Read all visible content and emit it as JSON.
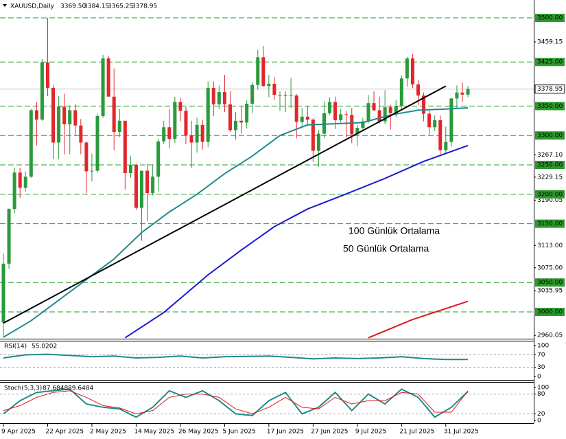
{
  "chart_data": [
    {
      "type": "candlestick",
      "title": "XAUUSD,Daily",
      "ohlc_labels": [
        "3369.50",
        "3384.15",
        "3365.25",
        "3378.95"
      ],
      "categories": [
        "9 Apr 2025",
        null,
        null,
        null,
        null,
        null,
        null,
        null,
        "22 Apr 2025",
        null,
        null,
        null,
        null,
        null,
        null,
        null,
        "2 May 2025",
        null,
        null,
        null,
        null,
        null,
        null,
        null,
        "14 May 2025",
        null,
        null,
        null,
        null,
        null,
        null,
        null,
        "26 May 2025",
        null,
        null,
        null,
        null,
        null,
        null,
        null,
        "5 Jun 2025",
        null,
        null,
        null,
        null,
        null,
        null,
        null,
        "17 Jun 2025",
        null,
        null,
        null,
        null,
        null,
        null,
        null,
        "27 Jun 2025",
        null,
        null,
        null,
        null,
        null,
        null,
        null,
        "9 Jul 2025",
        null,
        null,
        null,
        null,
        null,
        null,
        null,
        "21 Jul 2025",
        null,
        null,
        null,
        null,
        null,
        null,
        null,
        "31 Jul 2025",
        null,
        null,
        null,
        null
      ],
      "open": [
        2982,
        3082,
        3175,
        3237,
        3211,
        3230,
        3343,
        3327,
        3424,
        3381,
        3288,
        3349,
        3319,
        3343,
        3317,
        3288,
        3239,
        3240,
        3333,
        3431,
        3366,
        3306,
        3325,
        3236,
        3250,
        3177,
        3240,
        3202,
        3230,
        3290,
        3314,
        3294,
        3357,
        3342,
        3300,
        3288,
        3318,
        3289,
        3381,
        3353,
        3374,
        3353,
        3309,
        3325,
        3322,
        3354,
        3386,
        3433,
        3384,
        3388,
        3369,
        3369,
        3368,
        3368,
        3323,
        3332,
        3327,
        3274,
        3303,
        3338,
        3357,
        3326,
        3336,
        3335,
        3302,
        3313,
        3324,
        3355,
        3343,
        3324,
        3348,
        3338,
        3350,
        3397,
        3431,
        3387,
        3368,
        3337,
        3314,
        3326,
        3275,
        3289,
        3363,
        3373,
        3369.5
      ],
      "high": [
        3099,
        3176,
        3245,
        3245,
        3239,
        3345,
        3357,
        3430,
        3500,
        3386,
        3367,
        3371,
        3351,
        3353,
        3328,
        3290,
        3269,
        3337,
        3437,
        3435,
        3414,
        3345,
        3325,
        3265,
        3252,
        3240,
        3252,
        3250,
        3295,
        3325,
        3345,
        3366,
        3364,
        3348,
        3325,
        3330,
        3326,
        3392,
        3392,
        3385,
        3403,
        3376,
        3340,
        3350,
        3360,
        3391,
        3446,
        3452,
        3403,
        3399,
        3375,
        3375,
        3398,
        3370,
        3347,
        3350,
        3329,
        3309,
        3358,
        3365,
        3366,
        3345,
        3342,
        3347,
        3317,
        3330,
        3369,
        3375,
        3366,
        3377,
        3352,
        3361,
        3402,
        3434,
        3439,
        3394,
        3373,
        3345,
        3334,
        3334,
        3315,
        3364,
        3385,
        3390,
        3384.15
      ],
      "low": [
        2957,
        3073,
        3168,
        3194,
        3205,
        3228,
        3283,
        3325,
        3367,
        3260,
        3260,
        3268,
        3268,
        3300,
        3268,
        3202,
        3222,
        3237,
        3330,
        3367,
        3275,
        3297,
        3208,
        3228,
        3173,
        3121,
        3154,
        3198,
        3205,
        3285,
        3278,
        3287,
        3324,
        3285,
        3245,
        3271,
        3276,
        3280,
        3333,
        3345,
        3340,
        3306,
        3293,
        3303,
        3312,
        3338,
        3378,
        3383,
        3365,
        3361,
        3342,
        3340,
        3347,
        3295,
        3312,
        3316,
        3255,
        3247,
        3296,
        3335,
        3311,
        3322,
        3296,
        3287,
        3282,
        3308,
        3321,
        3341,
        3320,
        3319,
        3310,
        3331,
        3345,
        3383,
        3381,
        3351,
        3324,
        3302,
        3308,
        3268,
        3268,
        3281,
        3347,
        3357,
        3365.25
      ],
      "close": [
        3082,
        3175,
        3237,
        3211,
        3230,
        3343,
        3327,
        3424,
        3381,
        3288,
        3349,
        3319,
        3343,
        3317,
        3288,
        3239,
        3240,
        3333,
        3431,
        3366,
        3306,
        3325,
        3236,
        3250,
        3177,
        3240,
        3202,
        3230,
        3290,
        3314,
        3294,
        3357,
        3342,
        3300,
        3288,
        3318,
        3289,
        3381,
        3353,
        3374,
        3353,
        3309,
        3325,
        3322,
        3354,
        3386,
        3433,
        3384,
        3388,
        3369,
        3369,
        3368,
        3368,
        3323,
        3332,
        3327,
        3274,
        3303,
        3338,
        3357,
        3326,
        3336,
        3335,
        3302,
        3313,
        3324,
        3355,
        3343,
        3324,
        3348,
        3338,
        3350,
        3397,
        3431,
        3387,
        3368,
        3337,
        3314,
        3326,
        3275,
        3289,
        3363,
        3373,
        3369.5,
        3378.95
      ],
      "up_color": "#2a9a3c",
      "down_color": "#e3262c",
      "ylim": [
        2955.6,
        3530.4
      ],
      "yticks": [
        {
          "value": 3459.15,
          "label": "3459.15"
        },
        {
          "value": 3267.1,
          "label": "3267.10"
        },
        {
          "value": 3229.15,
          "label": "3229.15"
        },
        {
          "value": 3190.05,
          "label": "3190.05"
        },
        {
          "value": 3113,
          "label": "3113.00"
        },
        {
          "value": 3075,
          "label": "3075.00"
        },
        {
          "value": 3035.95,
          "label": "3035.95"
        },
        {
          "value": 2960.05,
          "label": "2960.05"
        }
      ],
      "levels": [
        {
          "value": 3500,
          "label": "3500.00"
        },
        {
          "value": 3425,
          "label": "3425.00"
        },
        {
          "value": 3350,
          "label": "3350.00"
        },
        {
          "value": 3300,
          "label": "3300.00"
        },
        {
          "value": 3250,
          "label": "3250.00"
        },
        {
          "value": 3200,
          "label": "3200.00"
        },
        {
          "value": 3150,
          "label": "3150.00"
        },
        {
          "value": 3050,
          "label": "3050.00"
        },
        {
          "value": 3000,
          "label": "3000.00"
        }
      ],
      "level_color": "#2a9a2a",
      "overlays": [
        {
          "color": "#1f8a8a",
          "x": [
            0,
            5,
            10,
            15,
            20,
            25,
            30,
            35,
            40,
            45,
            50,
            55,
            60,
            65,
            70,
            75,
            80,
            84
          ],
          "values": [
            2957,
            2985,
            3020,
            3055,
            3090,
            3135,
            3170,
            3200,
            3235,
            3265,
            3300,
            3318,
            3320,
            3322,
            3335,
            3343,
            3345,
            3347
          ]
        },
        {
          "color": "#1a1ad0",
          "x": [
            22,
            29,
            37,
            43,
            49,
            55,
            61,
            69,
            76,
            84
          ],
          "values": [
            2956,
            2999,
            3063,
            3105,
            3145,
            3175,
            3197,
            3227,
            3256,
            3283
          ]
        },
        {
          "color": "#e01818",
          "x": [
            66,
            74,
            84
          ],
          "values": [
            2956,
            2987,
            3018
          ]
        },
        {
          "color": "#000000",
          "x": [
            0,
            80
          ],
          "values": [
            2981,
            3384
          ]
        }
      ],
      "annotations": [
        {
          "text": "100 Günlük Ortalama",
          "color": "#1a1ad0"
        },
        {
          "text": "50 Günlük Ortalama",
          "color": "#1f8a8a"
        }
      ]
    },
    {
      "type": "line",
      "title": "RSI(14)",
      "ylim": [
        0,
        100
      ],
      "yticks": [
        100,
        70,
        30,
        0
      ],
      "levels": [
        70,
        30
      ],
      "series": [
        {
          "color": "#1f8a8a",
          "x": [
            0,
            4,
            8,
            12,
            16,
            20,
            24,
            28,
            32,
            36,
            40,
            44,
            48,
            52,
            56,
            60,
            64,
            68,
            72,
            76,
            80,
            84
          ],
          "values": [
            60,
            70,
            72,
            68,
            64,
            66,
            60,
            62,
            66,
            60,
            64,
            65,
            66,
            62,
            57,
            60,
            58,
            60,
            64,
            58,
            55,
            55.0202
          ]
        }
      ]
    },
    {
      "type": "line",
      "title": "Stoch(5,3,3)",
      "ylim": [
        0,
        100
      ],
      "yticks": [
        100,
        80,
        20,
        0
      ],
      "levels": [
        80,
        20
      ],
      "series": [
        {
          "color": "#1f8a8a",
          "x": [
            0,
            3,
            6,
            9,
            12,
            15,
            18,
            21,
            24,
            27,
            30,
            33,
            36,
            39,
            42,
            45,
            48,
            51,
            54,
            57,
            60,
            63,
            66,
            69,
            72,
            75,
            78,
            81,
            84
          ],
          "values": [
            20,
            60,
            85,
            90,
            95,
            50,
            40,
            35,
            10,
            40,
            90,
            70,
            90,
            60,
            20,
            15,
            60,
            85,
            20,
            40,
            85,
            30,
            80,
            50,
            95,
            70,
            10,
            40,
            87.6848
          ]
        },
        {
          "color": "#e01818",
          "x": [
            0,
            3,
            6,
            9,
            12,
            15,
            18,
            21,
            24,
            27,
            30,
            33,
            36,
            39,
            42,
            45,
            48,
            51,
            54,
            57,
            60,
            63,
            66,
            69,
            72,
            75,
            78,
            81,
            84
          ],
          "values": [
            30,
            45,
            70,
            85,
            90,
            70,
            45,
            38,
            20,
            30,
            70,
            80,
            80,
            70,
            35,
            20,
            40,
            70,
            40,
            35,
            70,
            50,
            60,
            60,
            85,
            80,
            25,
            25,
            89.6484
          ]
        }
      ]
    }
  ]
}
